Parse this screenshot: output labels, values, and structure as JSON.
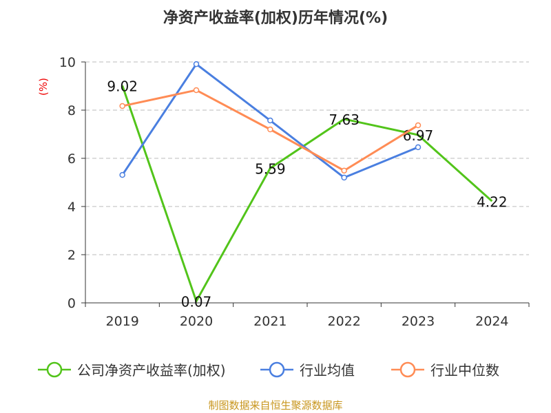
{
  "chart_data": {
    "type": "line",
    "title": "净资产收益率(加权)历年情况(%)",
    "ylabel": "(%)",
    "xlabel": "",
    "categories": [
      "2019",
      "2020",
      "2021",
      "2022",
      "2023",
      "2024"
    ],
    "ylim": [
      0,
      10
    ],
    "yticks": [
      "0",
      "2",
      "4",
      "6",
      "8",
      "10"
    ],
    "grid": true,
    "legend": "bottom",
    "series": [
      {
        "name": "公司净资产收益率(加权)",
        "color": "#52c41a",
        "values": [
          9.02,
          0.07,
          5.59,
          7.63,
          6.97,
          4.22
        ],
        "labels": [
          "9.02",
          "0.07",
          "5.59",
          "7.63",
          "6.97",
          "4.22"
        ]
      },
      {
        "name": "行业均值",
        "color": "#4a7fe0",
        "values": [
          5.31,
          9.91,
          7.57,
          5.2,
          6.46,
          null
        ]
      },
      {
        "name": "行业中位数",
        "color": "#ff8c55",
        "values": [
          8.17,
          8.83,
          7.2,
          5.49,
          7.37,
          null
        ]
      }
    ]
  },
  "source": "制图数据来自恒生聚源数据库"
}
